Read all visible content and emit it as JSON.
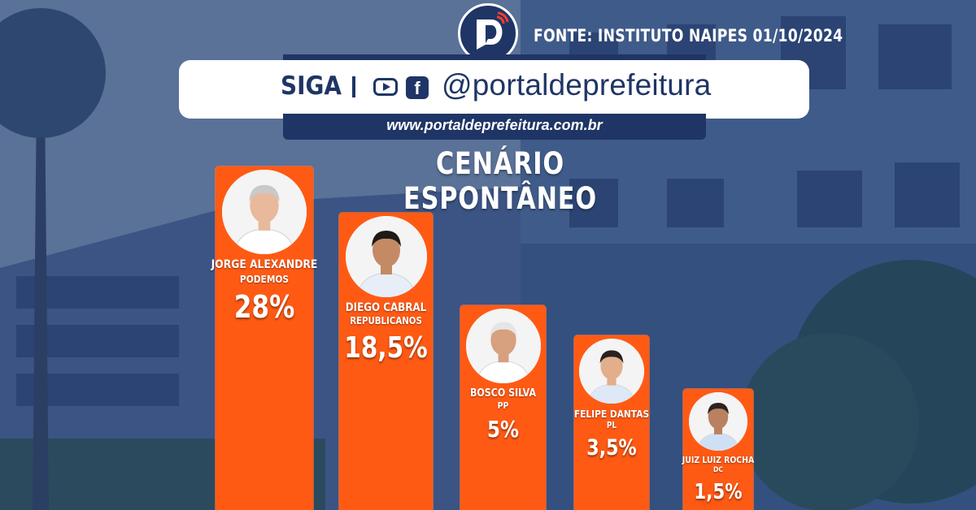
{
  "header": {
    "source": "FONTE: INSTITUTO NAIPES 01/10/2024",
    "follow_label": "SIGA",
    "social_handle": "@portaldeprefeitura",
    "website": "www.portaldeprefeitura.com.br",
    "icons": [
      "portal-logo-icon",
      "youtube-icon",
      "facebook-icon"
    ],
    "facebook_glyph": "f"
  },
  "colors": {
    "bar": "#ff5a14",
    "navy": "#1f3566",
    "background": "#2f4a78",
    "text": "#ffffff"
  },
  "chart_data": {
    "type": "bar",
    "title": "CENÁRIO ESPONTÂNEO",
    "categories": [
      "JORGE ALEXANDRE",
      "DIEGO CABRAL",
      "BOSCO SILVA",
      "FELIPE DANTAS",
      "JUIZ LUIZ ROCHA"
    ],
    "parties": [
      "PODEMOS",
      "REPUBLICANOS",
      "PP",
      "PL",
      "DC"
    ],
    "values": [
      28,
      18.5,
      5,
      3.5,
      1.5
    ],
    "value_labels": [
      "28%",
      "18,5%",
      "5%",
      "3,5%",
      "1,5%"
    ],
    "unit": "%",
    "grid": false,
    "legend": "none"
  }
}
